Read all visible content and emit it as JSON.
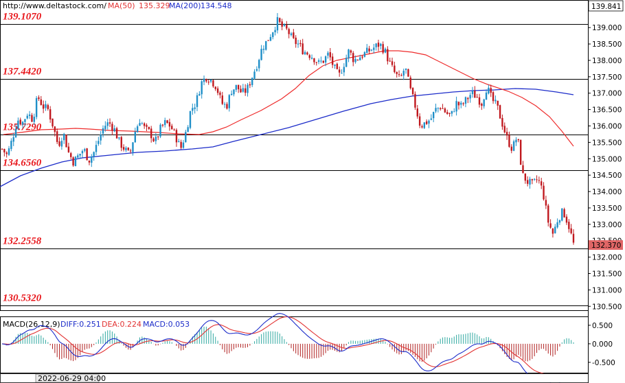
{
  "header": {
    "url": "http://www.deltastock.com/",
    "ma50_label": "MA(50)",
    "ma50_value": "135.329",
    "ma200_label": "MA(200)",
    "ma200_value": "134.548"
  },
  "macd_header": {
    "title": "MACD(26,12,9)",
    "diff": "DIFF:0.251",
    "dea": "DEA:0.224",
    "macd": "MACD:0.053"
  },
  "footer": {
    "date_label": "2022-06-29 04:00"
  },
  "colors": {
    "up": "#1f8fc8",
    "down": "#c0181e",
    "ma50": "#ee2b2b",
    "ma200": "#1b2bc9",
    "level_text": "#e8171c",
    "current_price_bg": "#e06666"
  },
  "chart_data": {
    "type": "candlestick",
    "price_axis": {
      "ylim": [
        130.38,
        139.841
      ],
      "ticks": [
        "139.000",
        "138.500",
        "138.000",
        "137.500",
        "137.000",
        "136.500",
        "136.000",
        "135.500",
        "135.000",
        "134.500",
        "134.000",
        "133.500",
        "133.000",
        "132.500",
        "132.000",
        "131.500",
        "131.000",
        "130.500"
      ],
      "tick_values": [
        139.0,
        138.5,
        138.0,
        137.5,
        137.0,
        136.5,
        136.0,
        135.5,
        135.0,
        134.5,
        134.0,
        133.5,
        133.0,
        132.5,
        132.0,
        131.5,
        131.0,
        130.5
      ],
      "top_value": "139.841",
      "current_price": "132.370",
      "current_value": 132.37
    },
    "levels": [
      {
        "label": "139.1070",
        "value": 139.107
      },
      {
        "label": "137.4420",
        "value": 137.442
      },
      {
        "label": "135.7290",
        "value": 135.729
      },
      {
        "label": "134.6560",
        "value": 134.656
      },
      {
        "label": "132.2558",
        "value": 132.2558
      },
      {
        "label": "130.5320",
        "value": 130.532
      }
    ],
    "ohlc_path": [
      135.3,
      135.1,
      135.6,
      136.2,
      136.1,
      136.4,
      136.2,
      136.9,
      136.6,
      136.5,
      136.0,
      135.4,
      135.8,
      135.2,
      134.9,
      135.1,
      135.3,
      134.95,
      135.2,
      135.6,
      136.0,
      136.1,
      135.9,
      135.5,
      135.3,
      135.1,
      135.8,
      136.2,
      135.9,
      135.8,
      135.5,
      135.9,
      136.1,
      136.0,
      135.7,
      135.3,
      135.8,
      136.5,
      136.7,
      137.3,
      137.5,
      137.4,
      137.2,
      136.7,
      136.6,
      137.1,
      137.2,
      137.0,
      137.1,
      137.5,
      137.9,
      138.4,
      138.6,
      138.9,
      139.2,
      139.0,
      138.9,
      138.6,
      138.5,
      138.3,
      138.2,
      138.1,
      137.9,
      138.0,
      138.2,
      137.8,
      137.5,
      137.9,
      138.3,
      138.0,
      138.1,
      138.2,
      138.3,
      138.4,
      138.5,
      138.3,
      137.9,
      137.6,
      137.4,
      137.8,
      137.1,
      136.6,
      136.0,
      136.1,
      136.2,
      136.5,
      136.6,
      136.4,
      136.3,
      136.7,
      136.6,
      136.8,
      137.0,
      136.9,
      136.7,
      137.2,
      136.8,
      136.6,
      136.1,
      135.6,
      135.3,
      135.7,
      134.5,
      134.3,
      134.2,
      134.4,
      134.0,
      133.1,
      132.7,
      133.2,
      133.4,
      133.0,
      132.4
    ],
    "ma50": [
      [
        5,
        196
      ],
      [
        30,
        193
      ],
      [
        60,
        189
      ],
      [
        90,
        188
      ],
      [
        110,
        187
      ],
      [
        130,
        188
      ],
      [
        160,
        190
      ],
      [
        190,
        191
      ],
      [
        230,
        193
      ],
      [
        260,
        195
      ],
      [
        290,
        196
      ],
      [
        310,
        192
      ],
      [
        330,
        185
      ],
      [
        350,
        175
      ],
      [
        380,
        161
      ],
      [
        410,
        144
      ],
      [
        430,
        129
      ],
      [
        450,
        110
      ],
      [
        470,
        96
      ],
      [
        490,
        88
      ],
      [
        510,
        84
      ],
      [
        540,
        78
      ],
      [
        560,
        74
      ],
      [
        580,
        74
      ],
      [
        600,
        76
      ],
      [
        620,
        80
      ],
      [
        640,
        90
      ],
      [
        660,
        100
      ],
      [
        690,
        115
      ],
      [
        710,
        123
      ],
      [
        740,
        133
      ],
      [
        760,
        142
      ],
      [
        780,
        154
      ],
      [
        800,
        170
      ],
      [
        818,
        191
      ],
      [
        835,
        213
      ]
    ],
    "ma200": [
      [
        0,
        272
      ],
      [
        30,
        256
      ],
      [
        60,
        245
      ],
      [
        90,
        236
      ],
      [
        120,
        230
      ],
      [
        160,
        226
      ],
      [
        200,
        222
      ],
      [
        240,
        220
      ],
      [
        280,
        217
      ],
      [
        310,
        214
      ],
      [
        340,
        206
      ],
      [
        380,
        196
      ],
      [
        420,
        186
      ],
      [
        460,
        174
      ],
      [
        500,
        162
      ],
      [
        540,
        151
      ],
      [
        570,
        145
      ],
      [
        600,
        140
      ],
      [
        630,
        137
      ],
      [
        660,
        134
      ],
      [
        690,
        132
      ],
      [
        720,
        131
      ],
      [
        750,
        129
      ],
      [
        780,
        130
      ],
      [
        810,
        134
      ],
      [
        835,
        138
      ]
    ],
    "macd_axis": {
      "ticks": [
        "0.500",
        "0.000",
        "-0.500"
      ],
      "tick_values": [
        0.5,
        0.0,
        -0.5
      ]
    }
  }
}
